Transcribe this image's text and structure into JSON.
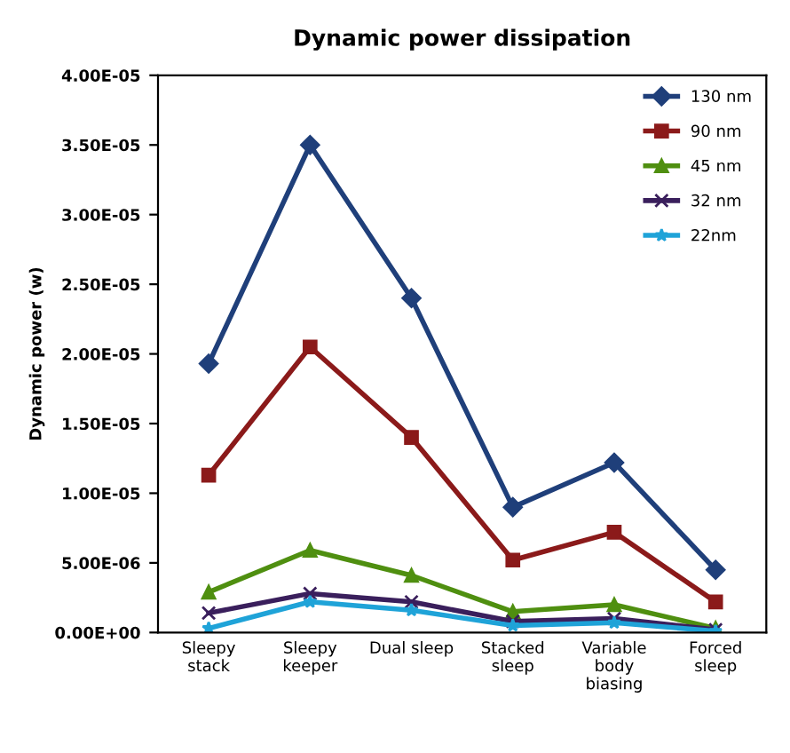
{
  "chart_data": {
    "type": "line",
    "title": "Dynamic power dissipation",
    "ylabel": "Dynamic power (w)",
    "categories": [
      "Sleepy\nstack",
      "Sleepy\nkeeper",
      "Dual sleep",
      "Stacked\nsleep",
      "Variable\nbody\nbiasing",
      "Forced\nsleep"
    ],
    "ylim": [
      0,
      4e-05
    ],
    "yticks": [
      {
        "value": 0,
        "label": "0.00E+00"
      },
      {
        "value": 5e-06,
        "label": "5.00E-06"
      },
      {
        "value": 1e-05,
        "label": "1.00E-05"
      },
      {
        "value": 1.5e-05,
        "label": "1.50E-05"
      },
      {
        "value": 2e-05,
        "label": "2.00E-05"
      },
      {
        "value": 2.5e-05,
        "label": "2.50E-05"
      },
      {
        "value": 3e-05,
        "label": "3.00E-05"
      },
      {
        "value": 3.5e-05,
        "label": "3.50E-05"
      },
      {
        "value": 4e-05,
        "label": "4.00E-05"
      }
    ],
    "grid": false,
    "legend": "top right",
    "series": [
      {
        "name": "130 nm",
        "color": "#1f3f7a",
        "marker": "diamond",
        "values": [
          1.93e-05,
          3.5e-05,
          2.4e-05,
          9e-06,
          1.22e-05,
          4.5e-06
        ]
      },
      {
        "name": "90 nm",
        "color": "#8b1a1a",
        "marker": "square",
        "values": [
          1.13e-05,
          2.05e-05,
          1.4e-05,
          5.2e-06,
          7.2e-06,
          2.2e-06
        ]
      },
      {
        "name": "45 nm",
        "color": "#4f8f10",
        "marker": "triangle",
        "values": [
          2.9e-06,
          5.9e-06,
          4.1e-06,
          1.5e-06,
          2e-06,
          3e-07
        ]
      },
      {
        "name": "32 nm",
        "color": "#3a1f5c",
        "marker": "cross",
        "values": [
          1.4e-06,
          2.8e-06,
          2.2e-06,
          8e-07,
          1e-06,
          2e-07
        ]
      },
      {
        "name": "22nm",
        "color": "#1fa3d8",
        "marker": "star",
        "values": [
          3e-07,
          2.2e-06,
          1.6e-06,
          5e-07,
          7e-07,
          1e-07
        ]
      }
    ]
  }
}
